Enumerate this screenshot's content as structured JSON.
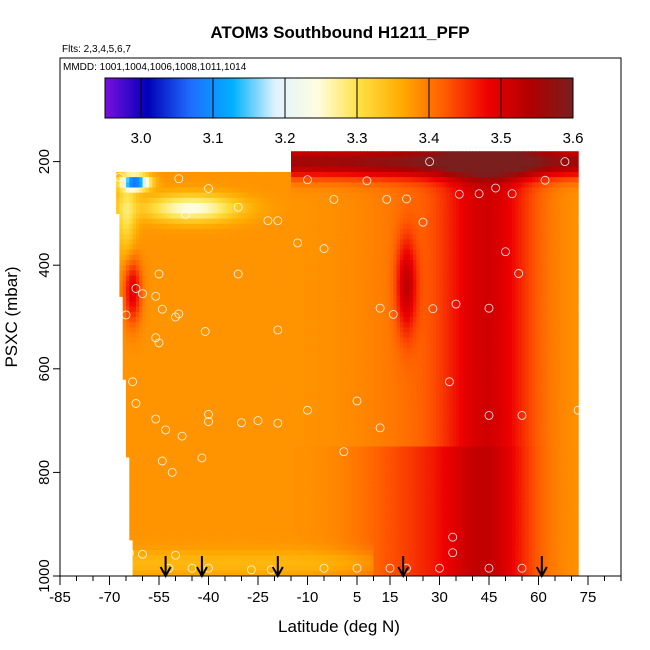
{
  "header": {
    "title": "ATOM3 Southbound H1211_PFP",
    "flights": "Flts: 2,3,4,5,6,7",
    "mmdd": "MMDD: 1001,1004,1006,1008,1011,1014"
  },
  "chart_data": {
    "type": "heatmap",
    "title": "ATOM3 Southbound H1211_PFP",
    "xlabel": "Latitude (deg N)",
    "ylabel": "PSXC (mbar)",
    "xlim": [
      -85,
      85
    ],
    "ylim": [
      1000,
      0
    ],
    "xticks": [
      -85,
      -70,
      -55,
      -40,
      -25,
      -10,
      5,
      15,
      30,
      45,
      60,
      75
    ],
    "xtick_labels": [
      "-85",
      "-70",
      "-55",
      "-40",
      "-25",
      "-10",
      "5",
      "15",
      "30",
      "45",
      "60",
      "75"
    ],
    "yticks": [
      200,
      400,
      600,
      800,
      1000
    ],
    "ytick_labels": [
      "200",
      "400",
      "600",
      "800",
      "1000"
    ],
    "colorbar": {
      "min": 2.95,
      "max": 3.6,
      "ticks": [
        3.0,
        3.1,
        3.2,
        3.3,
        3.4,
        3.5,
        3.6
      ],
      "tick_labels": [
        "3.0",
        "3.1",
        "3.2",
        "3.3",
        "3.4",
        "3.5",
        "3.6"
      ],
      "colors": [
        "#7b10e0",
        "#0000b8",
        "#1f6cff",
        "#00b0ff",
        "#dff2ff",
        "#fffde0",
        "#ffe040",
        "#ffaa00",
        "#ff5a00",
        "#ee0000",
        "#b00000",
        "#7a1e1e"
      ]
    },
    "profile_arrows_latitude": [
      -53,
      -42,
      -19,
      19,
      61
    ],
    "field_extent": {
      "pressure_top_south": 220,
      "pressure_top_north": 180,
      "latitude_south_top": -68,
      "latitude_south_bottom": -63,
      "latitude_north": 72
    },
    "field_description_points": [
      {
        "lat": -65,
        "p": 240,
        "v": 3.0
      },
      {
        "lat": -58,
        "p": 300,
        "v": 3.24
      },
      {
        "lat": -45,
        "p": 300,
        "v": 3.32
      },
      {
        "lat": -63,
        "p": 440,
        "v": 3.5
      },
      {
        "lat": 20,
        "p": 430,
        "v": 3.5
      },
      {
        "lat": 30,
        "p": 200,
        "v": 3.57
      },
      {
        "lat": 50,
        "p": 650,
        "v": 3.5
      },
      {
        "lat": -25,
        "p": 600,
        "v": 3.4
      }
    ],
    "sample_points": [
      {
        "lat": -20,
        "p": 198
      },
      {
        "lat": 27,
        "p": 200
      },
      {
        "lat": 68,
        "p": 200
      },
      {
        "lat": -67,
        "p": 230
      },
      {
        "lat": -49,
        "p": 233
      },
      {
        "lat": -10,
        "p": 235
      },
      {
        "lat": 8,
        "p": 237
      },
      {
        "lat": 62,
        "p": 236
      },
      {
        "lat": -40,
        "p": 252
      },
      {
        "lat": 47,
        "p": 251
      },
      {
        "lat": 36,
        "p": 263
      },
      {
        "lat": 42,
        "p": 262
      },
      {
        "lat": 52,
        "p": 262
      },
      {
        "lat": -2,
        "p": 273
      },
      {
        "lat": 14,
        "p": 273
      },
      {
        "lat": 20,
        "p": 272
      },
      {
        "lat": -31,
        "p": 288
      },
      {
        "lat": -47,
        "p": 302
      },
      {
        "lat": -22,
        "p": 314
      },
      {
        "lat": -19,
        "p": 314
      },
      {
        "lat": 25,
        "p": 317
      },
      {
        "lat": -13,
        "p": 357
      },
      {
        "lat": -5,
        "p": 368
      },
      {
        "lat": 50,
        "p": 374
      },
      {
        "lat": -55,
        "p": 417
      },
      {
        "lat": -31,
        "p": 417
      },
      {
        "lat": 54,
        "p": 416
      },
      {
        "lat": -62,
        "p": 445
      },
      {
        "lat": -60,
        "p": 455
      },
      {
        "lat": -56,
        "p": 460
      },
      {
        "lat": 35,
        "p": 475
      },
      {
        "lat": 12,
        "p": 483
      },
      {
        "lat": 28,
        "p": 484
      },
      {
        "lat": 45,
        "p": 483
      },
      {
        "lat": -65,
        "p": 496
      },
      {
        "lat": -54,
        "p": 485
      },
      {
        "lat": -50,
        "p": 500
      },
      {
        "lat": -49,
        "p": 494
      },
      {
        "lat": 16,
        "p": 495
      },
      {
        "lat": -56,
        "p": 540
      },
      {
        "lat": -55,
        "p": 550
      },
      {
        "lat": -41,
        "p": 528
      },
      {
        "lat": -19,
        "p": 525
      },
      {
        "lat": -63,
        "p": 625
      },
      {
        "lat": 33,
        "p": 625
      },
      {
        "lat": -62,
        "p": 667
      },
      {
        "lat": -56,
        "p": 697
      },
      {
        "lat": -40,
        "p": 688
      },
      {
        "lat": -40,
        "p": 702
      },
      {
        "lat": -25,
        "p": 700
      },
      {
        "lat": -10,
        "p": 680
      },
      {
        "lat": 5,
        "p": 662
      },
      {
        "lat": 45,
        "p": 690
      },
      {
        "lat": 55,
        "p": 690
      },
      {
        "lat": 72,
        "p": 680
      },
      {
        "lat": -53,
        "p": 718
      },
      {
        "lat": -30,
        "p": 704
      },
      {
        "lat": -19,
        "p": 705
      },
      {
        "lat": 12,
        "p": 714
      },
      {
        "lat": -48,
        "p": 730
      },
      {
        "lat": -54,
        "p": 778
      },
      {
        "lat": -42,
        "p": 772
      },
      {
        "lat": 1,
        "p": 760
      },
      {
        "lat": -51,
        "p": 800
      },
      {
        "lat": 34,
        "p": 925
      },
      {
        "lat": -65,
        "p": 947
      },
      {
        "lat": -64,
        "p": 955
      },
      {
        "lat": -60,
        "p": 958
      },
      {
        "lat": -50,
        "p": 960
      },
      {
        "lat": 34,
        "p": 955
      },
      {
        "lat": -52,
        "p": 985
      },
      {
        "lat": -45,
        "p": 985
      },
      {
        "lat": -40,
        "p": 985
      },
      {
        "lat": -27,
        "p": 988
      },
      {
        "lat": -21,
        "p": 988
      },
      {
        "lat": -5,
        "p": 985
      },
      {
        "lat": 5,
        "p": 985
      },
      {
        "lat": 15,
        "p": 985
      },
      {
        "lat": 20,
        "p": 985
      },
      {
        "lat": 30,
        "p": 985
      },
      {
        "lat": 45,
        "p": 985
      },
      {
        "lat": 55,
        "p": 985
      }
    ]
  }
}
